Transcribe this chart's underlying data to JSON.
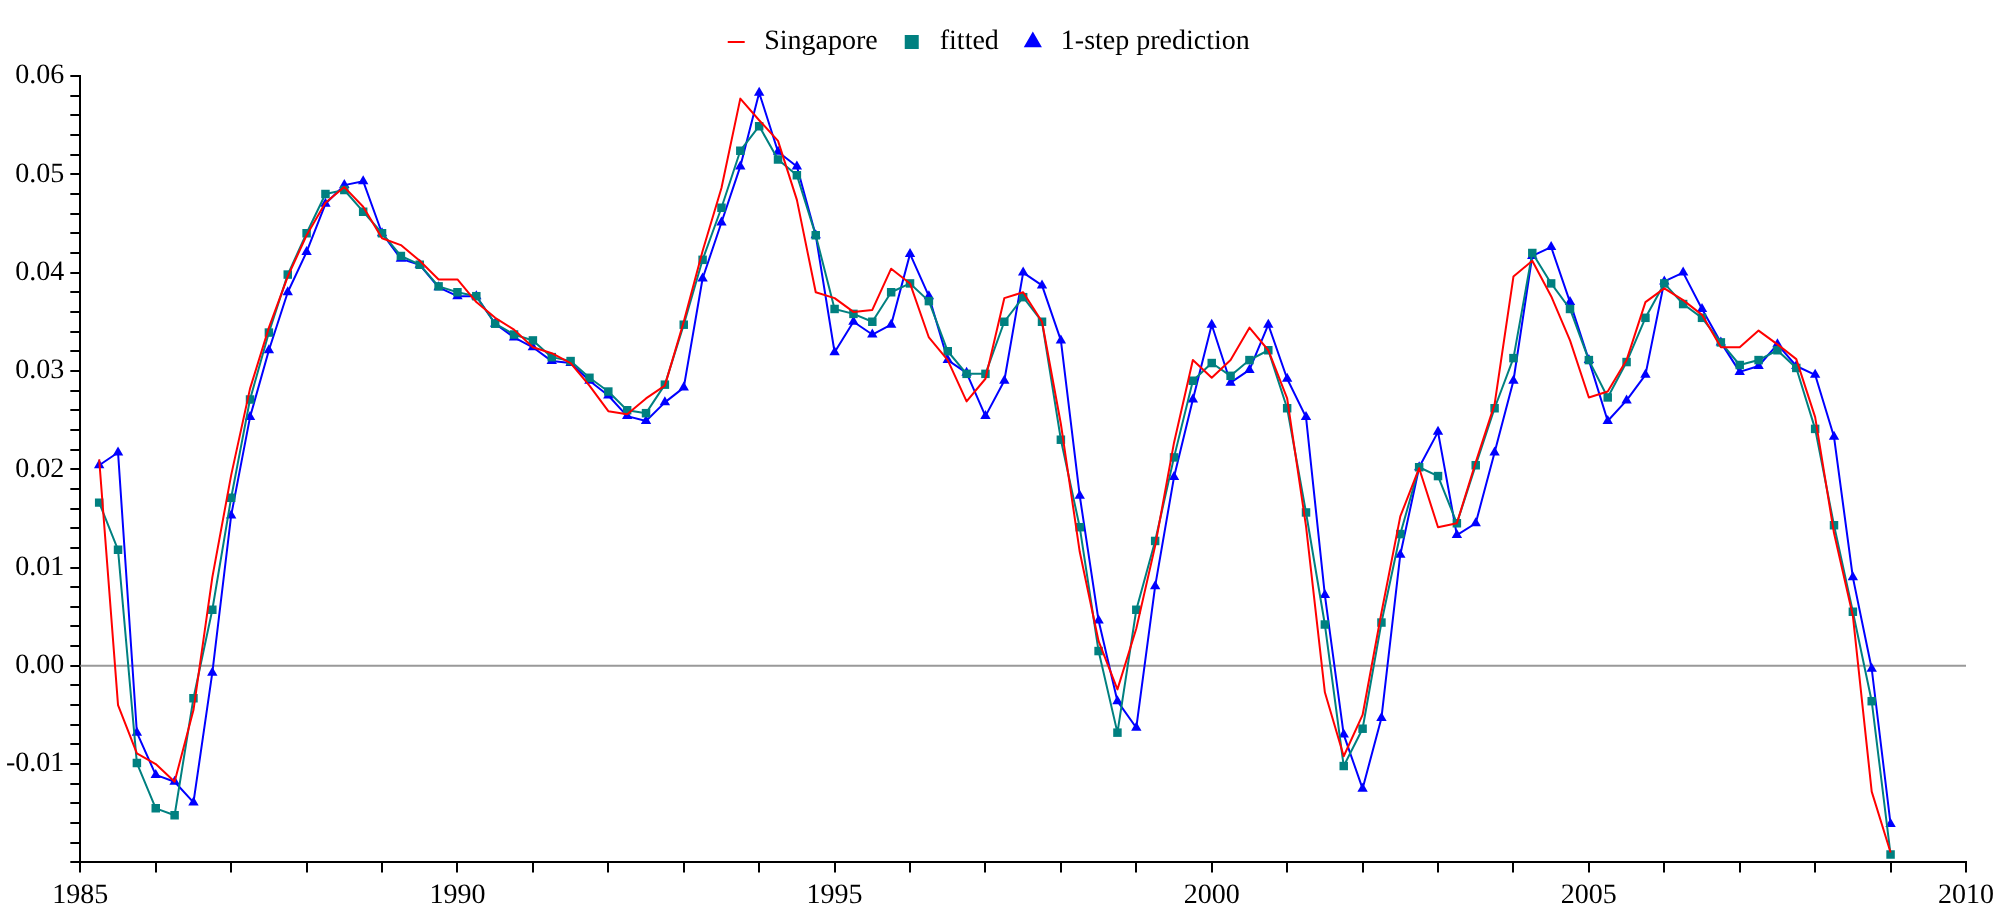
{
  "chart_data": {
    "type": "line",
    "x": [
      1985.25,
      1985.5,
      1985.75,
      1986,
      1986.25,
      1986.5,
      1986.75,
      1987,
      1987.25,
      1987.5,
      1987.75,
      1988,
      1988.25,
      1988.5,
      1988.75,
      1989,
      1989.25,
      1989.5,
      1989.75,
      1990,
      1990.25,
      1990.5,
      1990.75,
      1991,
      1991.25,
      1991.5,
      1991.75,
      1992,
      1992.25,
      1992.5,
      1992.75,
      1993,
      1993.25,
      1993.5,
      1993.75,
      1994,
      1994.25,
      1994.5,
      1994.75,
      1995,
      1995.25,
      1995.5,
      1995.75,
      1996,
      1996.25,
      1996.5,
      1996.75,
      1997,
      1997.25,
      1997.5,
      1997.75,
      1998,
      1998.25,
      1998.5,
      1998.75,
      1999,
      1999.25,
      1999.5,
      1999.75,
      2000,
      2000.25,
      2000.5,
      2000.75,
      2001,
      2001.25,
      2001.5,
      2001.75,
      2002,
      2002.25,
      2002.5,
      2002.75,
      2003,
      2003.25,
      2003.5,
      2003.75,
      2004,
      2004.25,
      2004.5,
      2004.75,
      2005,
      2005.25,
      2005.5,
      2005.75,
      2006,
      2006.25,
      2006.5,
      2006.75,
      2007,
      2007.25,
      2007.5,
      2007.75,
      2008,
      2008.25,
      2008.5,
      2008.75,
      2009
    ],
    "series": [
      {
        "name": "Singapore",
        "color": "#ff0000",
        "marker": "none",
        "values": [
          0.021,
          -0.004,
          -0.0089,
          -0.01,
          -0.0118,
          -0.0045,
          0.009,
          0.0194,
          0.0282,
          0.0344,
          0.0396,
          0.0438,
          0.0471,
          0.0487,
          0.0467,
          0.0435,
          0.0428,
          0.0412,
          0.0393,
          0.0393,
          0.037,
          0.0354,
          0.0342,
          0.0324,
          0.0318,
          0.0308,
          0.0285,
          0.0259,
          0.0256,
          0.0272,
          0.0285,
          0.035,
          0.0422,
          0.0486,
          0.0577,
          0.0555,
          0.0534,
          0.0474,
          0.038,
          0.0374,
          0.036,
          0.0362,
          0.0404,
          0.0389,
          0.0334,
          0.0311,
          0.0269,
          0.0292,
          0.0374,
          0.038,
          0.035,
          0.0246,
          0.0116,
          0.0025,
          -0.0024,
          0.0038,
          0.0122,
          0.0227,
          0.0311,
          0.0293,
          0.0311,
          0.0344,
          0.0321,
          0.0272,
          0.0142,
          -0.0027,
          -0.0092,
          -0.005,
          0.0054,
          0.0152,
          0.0201,
          0.0141,
          0.0145,
          0.0207,
          0.0266,
          0.0396,
          0.0412,
          0.0376,
          0.0331,
          0.0273,
          0.0279,
          0.0311,
          0.037,
          0.0384,
          0.0372,
          0.0357,
          0.0324,
          0.0324,
          0.0341,
          0.0327,
          0.0312,
          0.0253,
          0.0135,
          0.0051,
          -0.0128,
          -0.019
        ]
      },
      {
        "name": "fitted",
        "color": "#008080",
        "marker": "square",
        "values": [
          0.0166,
          0.0118,
          -0.0099,
          -0.0145,
          -0.0152,
          -0.0033,
          0.0057,
          0.0171,
          0.0271,
          0.0339,
          0.0398,
          0.044,
          0.048,
          0.0484,
          0.0462,
          0.044,
          0.0417,
          0.0408,
          0.0386,
          0.038,
          0.0376,
          0.0348,
          0.0337,
          0.0331,
          0.0314,
          0.031,
          0.0293,
          0.0279,
          0.026,
          0.0257,
          0.0286,
          0.0347,
          0.0413,
          0.0466,
          0.0524,
          0.0549,
          0.0515,
          0.0499,
          0.0438,
          0.0363,
          0.0358,
          0.035,
          0.038,
          0.0389,
          0.0371,
          0.032,
          0.0297,
          0.0297,
          0.035,
          0.0375,
          0.035,
          0.023,
          0.0141,
          0.0015,
          -0.0068,
          0.0057,
          0.0127,
          0.0212,
          0.029,
          0.0308,
          0.0295,
          0.0311,
          0.0321,
          0.0262,
          0.0156,
          0.0042,
          -0.0102,
          -0.0064,
          0.0044,
          0.0134,
          0.0202,
          0.0193,
          0.0145,
          0.0204,
          0.0262,
          0.0313,
          0.042,
          0.0389,
          0.0363,
          0.0311,
          0.0273,
          0.0309,
          0.0354,
          0.0389,
          0.0368,
          0.0354,
          0.0329,
          0.0306,
          0.0311,
          0.0321,
          0.0303,
          0.0241,
          0.0143,
          0.0055,
          -0.0036,
          -0.0192
        ]
      },
      {
        "name": "1-step prediction",
        "color": "#0000ff",
        "marker": "triangle",
        "values": [
          0.0204,
          0.0217,
          -0.0068,
          -0.0111,
          -0.0118,
          -0.0139,
          -0.0007,
          0.0153,
          0.0253,
          0.0321,
          0.038,
          0.0421,
          0.047,
          0.0489,
          0.0493,
          0.044,
          0.0414,
          0.0408,
          0.0385,
          0.0376,
          0.0376,
          0.0348,
          0.0334,
          0.0324,
          0.031,
          0.0308,
          0.029,
          0.0275,
          0.0254,
          0.0249,
          0.0268,
          0.0283,
          0.0394,
          0.0451,
          0.0508,
          0.0583,
          0.0523,
          0.0508,
          0.0438,
          0.0319,
          0.035,
          0.0337,
          0.0347,
          0.0419,
          0.0376,
          0.0311,
          0.0298,
          0.0254,
          0.029,
          0.04,
          0.0387,
          0.0331,
          0.0173,
          0.0046,
          -0.0036,
          -0.0063,
          0.0081,
          0.0192,
          0.0271,
          0.0347,
          0.0288,
          0.0301,
          0.0347,
          0.0292,
          0.0253,
          0.0072,
          -0.007,
          -0.0125,
          -0.0053,
          0.0113,
          0.0202,
          0.0238,
          0.0133,
          0.0145,
          0.0217,
          0.029,
          0.0417,
          0.0426,
          0.037,
          0.0311,
          0.0249,
          0.027,
          0.0296,
          0.0391,
          0.04,
          0.0363,
          0.0329,
          0.0299,
          0.0305,
          0.0327,
          0.0305,
          0.0296,
          0.0233,
          0.009,
          -0.0003,
          -0.0161
        ]
      }
    ],
    "xlim": [
      1985,
      2010
    ],
    "xticks": [
      1985,
      {
        "value": 1986,
        "label": null
      },
      {
        "value": 1987,
        "label": null
      },
      {
        "value": 1988,
        "label": null
      },
      {
        "value": 1989,
        "label": null
      },
      1990,
      {
        "value": 1991,
        "label": null
      },
      {
        "value": 1992,
        "label": null
      },
      {
        "value": 1993,
        "label": null
      },
      {
        "value": 1994,
        "label": null
      },
      1995,
      {
        "value": 1996,
        "label": null
      },
      {
        "value": 1997,
        "label": null
      },
      {
        "value": 1998,
        "label": null
      },
      {
        "value": 1999,
        "label": null
      },
      2000,
      {
        "value": 2001,
        "label": null
      },
      {
        "value": 2002,
        "label": null
      },
      {
        "value": 2003,
        "label": null
      },
      {
        "value": 2004,
        "label": null
      },
      2005,
      {
        "value": 2006,
        "label": null
      },
      {
        "value": 2007,
        "label": null
      },
      {
        "value": 2008,
        "label": null
      },
      {
        "value": 2009,
        "label": null
      },
      2010
    ],
    "ylim": [
      -0.02,
      0.06
    ],
    "yticks": [
      {
        "value": -0.02,
        "label": null
      },
      {
        "value": -0.018,
        "label": null
      },
      {
        "value": -0.016,
        "label": null
      },
      {
        "value": -0.014,
        "label": null
      },
      {
        "value": -0.012,
        "label": null
      },
      {
        "value": -0.01,
        "label": "-0.01"
      },
      {
        "value": -0.008,
        "label": null
      },
      {
        "value": -0.006,
        "label": null
      },
      {
        "value": -0.004,
        "label": null
      },
      {
        "value": -0.002,
        "label": null
      },
      {
        "value": 0,
        "label": "0.00"
      },
      {
        "value": 0.002,
        "label": null
      },
      {
        "value": 0.004,
        "label": null
      },
      {
        "value": 0.006,
        "label": null
      },
      {
        "value": 0.008,
        "label": null
      },
      {
        "value": 0.01,
        "label": "0.01"
      },
      {
        "value": 0.012,
        "label": null
      },
      {
        "value": 0.014,
        "label": null
      },
      {
        "value": 0.016,
        "label": null
      },
      {
        "value": 0.018,
        "label": null
      },
      {
        "value": 0.02,
        "label": "0.02"
      },
      {
        "value": 0.022,
        "label": null
      },
      {
        "value": 0.024,
        "label": null
      },
      {
        "value": 0.026,
        "label": null
      },
      {
        "value": 0.028,
        "label": null
      },
      {
        "value": 0.03,
        "label": "0.03"
      },
      {
        "value": 0.032,
        "label": null
      },
      {
        "value": 0.034,
        "label": null
      },
      {
        "value": 0.036,
        "label": null
      },
      {
        "value": 0.038,
        "label": null
      },
      {
        "value": 0.04,
        "label": "0.04"
      },
      {
        "value": 0.042,
        "label": null
      },
      {
        "value": 0.044,
        "label": null
      },
      {
        "value": 0.046,
        "label": null
      },
      {
        "value": 0.048,
        "label": null
      },
      {
        "value": 0.05,
        "label": "0.05"
      },
      {
        "value": 0.052,
        "label": null
      },
      {
        "value": 0.054,
        "label": null
      },
      {
        "value": 0.056,
        "label": null
      },
      {
        "value": 0.058,
        "label": null
      },
      {
        "value": 0.06,
        "label": "0.06"
      }
    ],
    "ref_lines": [
      {
        "axis": "y",
        "value": 0,
        "color": "#999999"
      }
    ],
    "grid": false,
    "legend": "top"
  }
}
